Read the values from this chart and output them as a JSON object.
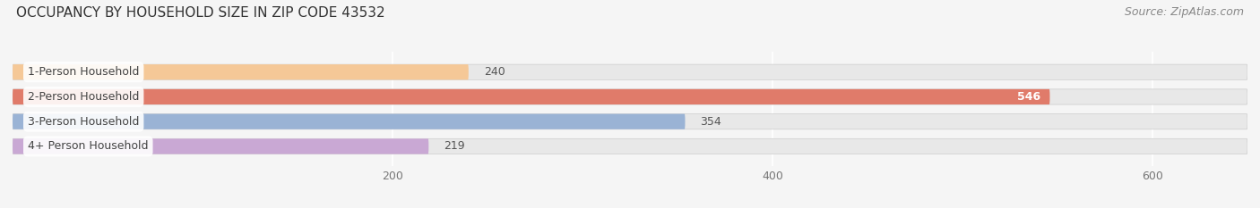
{
  "title": "OCCUPANCY BY HOUSEHOLD SIZE IN ZIP CODE 43532",
  "source": "Source: ZipAtlas.com",
  "categories": [
    "1-Person Household",
    "2-Person Household",
    "3-Person Household",
    "4+ Person Household"
  ],
  "values": [
    240,
    546,
    354,
    219
  ],
  "bar_colors": [
    "#f5c897",
    "#e07b6a",
    "#9ab3d5",
    "#c9a8d4"
  ],
  "xlim_max": 650,
  "xticks": [
    200,
    400,
    600
  ],
  "background_color": "#f5f5f5",
  "bar_background_color": "#e8e8e8",
  "title_fontsize": 11,
  "source_fontsize": 9,
  "label_fontsize": 9,
  "value_fontsize": 9,
  "tick_fontsize": 9,
  "bar_height": 0.62
}
